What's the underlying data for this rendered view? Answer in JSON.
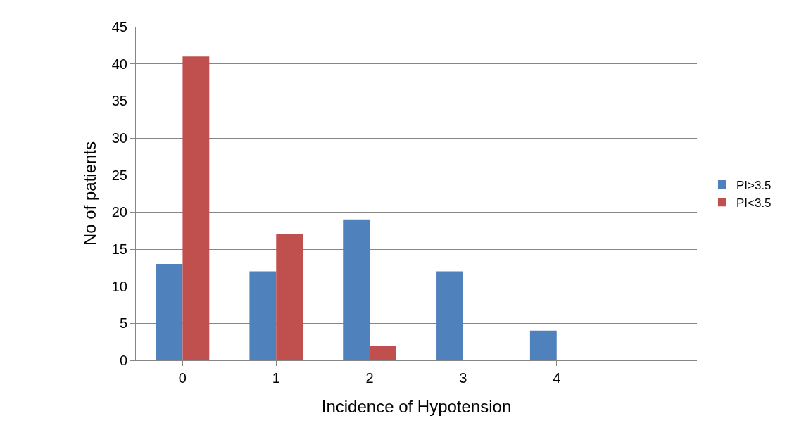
{
  "chart_data": {
    "type": "bar",
    "xlabel": "Incidence of Hypotension",
    "ylabel": "No of patients",
    "categories": [
      "0",
      "1",
      "2",
      "3",
      "4",
      null
    ],
    "series": [
      {
        "name": "PI>3.5",
        "color": "#4f81bd",
        "values": [
          13,
          12,
          19,
          12,
          4,
          null
        ]
      },
      {
        "name": "PI<3.5",
        "color": "#c0504d",
        "values": [
          41,
          17,
          2,
          0,
          0,
          null
        ]
      }
    ],
    "ylim": [
      0,
      45
    ],
    "yticks": [
      0,
      5,
      10,
      15,
      20,
      25,
      30,
      35,
      40,
      45
    ],
    "grid": "y",
    "legend": "right"
  }
}
